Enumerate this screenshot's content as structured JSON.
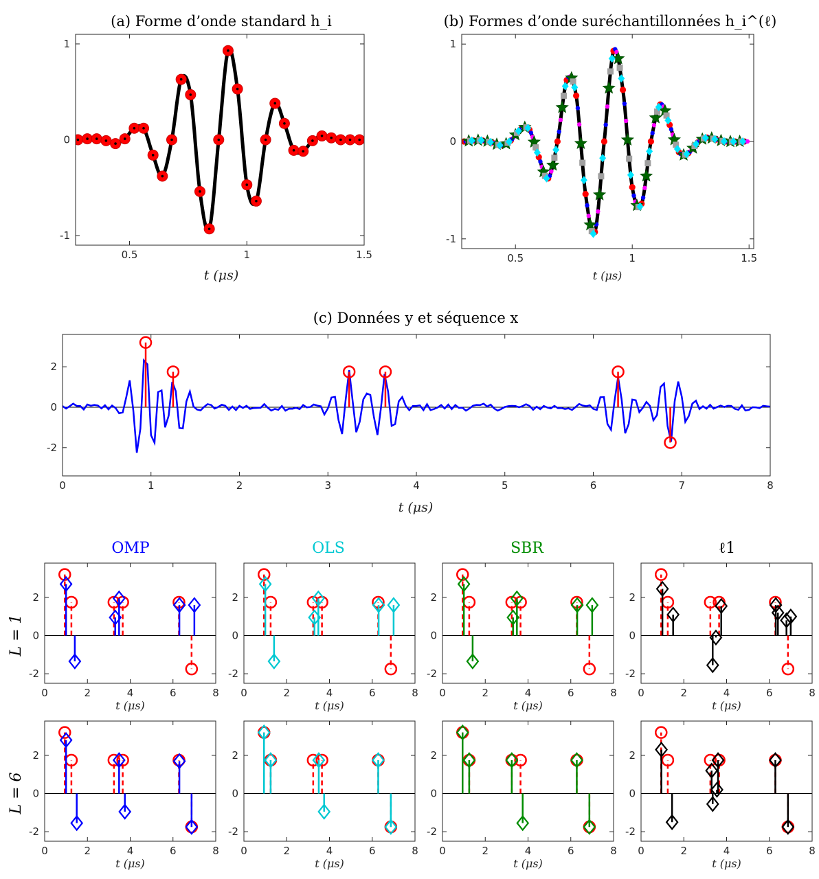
{
  "chart_data": [
    {
      "id": "a",
      "type": "line",
      "title": "(a) Forme d’onde standard h_i",
      "xlabel": "t (μs)",
      "xlim": [
        0.27,
        1.5
      ],
      "ylim": [
        -1.1,
        1.1
      ],
      "xticks": [
        0.5,
        1,
        1.5
      ],
      "xtick_labels": [
        "0.5",
        "1",
        "1.5"
      ],
      "yticks": [
        -1,
        0,
        1
      ],
      "ytick_labels": [
        "-1",
        "0",
        "1"
      ],
      "samples_x": [
        0.28,
        0.32,
        0.36,
        0.4,
        0.44,
        0.48,
        0.52,
        0.56,
        0.6,
        0.64,
        0.68,
        0.72,
        0.76,
        0.8,
        0.84,
        0.88,
        0.92,
        0.96,
        1.0,
        1.04,
        1.08,
        1.12,
        1.16,
        1.2,
        1.24,
        1.28,
        1.32,
        1.36,
        1.4,
        1.44,
        1.48
      ],
      "samples_y": [
        0,
        0.01,
        0.01,
        -0.01,
        -0.04,
        0.01,
        0.12,
        0.12,
        -0.16,
        -0.38,
        0,
        0.63,
        0.47,
        -0.54,
        -0.93,
        0,
        0.93,
        0.53,
        -0.47,
        -0.64,
        0,
        0.38,
        0.17,
        -0.11,
        -0.12,
        -0.01,
        0.04,
        0.02,
        0,
        0,
        0
      ],
      "colors": {
        "curve": "#000000",
        "marker": "#ff0000"
      }
    },
    {
      "id": "b",
      "type": "line",
      "title": "(b) Formes d’onde suréchantillonnées h_i^(ℓ)",
      "xlabel": "t (μs)",
      "xlim": [
        0.27,
        1.52
      ],
      "ylim": [
        -1.1,
        1.1
      ],
      "xticks": [
        0.5,
        1,
        1.5
      ],
      "xtick_labels": [
        "0.5",
        "1",
        "1.5"
      ],
      "yticks": [
        -1,
        0,
        1
      ],
      "ytick_labels": [
        "-1",
        "0",
        "1"
      ],
      "marker_sets": [
        {
          "marker": "circle",
          "color": "#ff0000"
        },
        {
          "marker": "circle-small",
          "color": "#0000ff"
        },
        {
          "marker": "circle-small",
          "color": "#ff00ff"
        },
        {
          "marker": "star",
          "color": "#006400"
        },
        {
          "marker": "square",
          "color": "#a0a0a0"
        },
        {
          "marker": "diamond",
          "color": "#00e5ff"
        }
      ]
    },
    {
      "id": "c",
      "type": "line",
      "title": "(c) Données y et séquence x",
      "xlabel": "t (μs)",
      "xlim": [
        0,
        8
      ],
      "ylim": [
        -3.4,
        3.6
      ],
      "xticks": [
        0,
        1,
        2,
        3,
        4,
        5,
        6,
        7,
        8
      ],
      "xtick_labels": [
        "0",
        "1",
        "2",
        "3",
        "4",
        "5",
        "6",
        "7",
        "8"
      ],
      "yticks": [
        -2,
        0,
        2
      ],
      "ytick_labels": [
        "-2",
        "0",
        "2"
      ],
      "spikes_x": [
        0.94,
        1.25,
        3.24,
        3.65,
        6.28,
        6.87
      ],
      "spikes_y": [
        3.2,
        1.75,
        1.75,
        1.75,
        1.75,
        -1.75
      ],
      "colors": {
        "data": "#0000ff",
        "spikes": "#ff0000"
      }
    }
  ],
  "methods": [
    {
      "name": "OMP",
      "color": "#0000ff"
    },
    {
      "name": "OLS",
      "color": "#00c8d2"
    },
    {
      "name": "SBR",
      "color": "#008c00"
    },
    {
      "name": "ℓ1",
      "color": "#000000"
    }
  ],
  "rows": [
    {
      "label": "L = 1"
    },
    {
      "label": "L = 6"
    }
  ],
  "small_axes": {
    "xlim": [
      0,
      8
    ],
    "ylim": [
      -2.5,
      3.8
    ],
    "xticks": [
      0,
      2,
      4,
      6,
      8
    ],
    "xtick_labels": [
      "0",
      "2",
      "4",
      "6",
      "8"
    ],
    "yticks": [
      -2,
      0,
      2
    ],
    "ytick_labels": [
      "-2",
      "0",
      "2"
    ],
    "xlabel": "t (μs)"
  },
  "estimates": {
    "L1": [
      [
        [
          1.0,
          2.7
        ],
        [
          1.41,
          -1.35
        ],
        [
          3.3,
          0.95
        ],
        [
          3.48,
          1.95
        ],
        [
          6.3,
          1.6
        ],
        [
          7.0,
          1.6
        ]
      ],
      [
        [
          1.0,
          2.7
        ],
        [
          1.41,
          -1.35
        ],
        [
          3.3,
          0.95
        ],
        [
          3.48,
          1.95
        ],
        [
          6.3,
          1.6
        ],
        [
          7.0,
          1.6
        ]
      ],
      [
        [
          1.0,
          2.7
        ],
        [
          1.41,
          -1.35
        ],
        [
          3.3,
          0.95
        ],
        [
          3.48,
          1.95
        ],
        [
          6.3,
          1.6
        ],
        [
          7.0,
          1.6
        ]
      ],
      [
        [
          1.0,
          2.45
        ],
        [
          1.5,
          1.1
        ],
        [
          3.35,
          -1.55
        ],
        [
          3.5,
          -0.1
        ],
        [
          3.75,
          1.55
        ],
        [
          6.3,
          1.6
        ],
        [
          6.4,
          1.2
        ],
        [
          6.8,
          0.8
        ],
        [
          7.0,
          1.0
        ]
      ]
    ],
    "L6": [
      [
        [
          1.0,
          2.8
        ],
        [
          1.5,
          -1.55
        ],
        [
          3.48,
          1.75
        ],
        [
          3.75,
          -0.95
        ],
        [
          6.3,
          1.7
        ],
        [
          6.87,
          -1.75
        ]
      ],
      [
        [
          0.94,
          3.2
        ],
        [
          1.25,
          1.75
        ],
        [
          3.5,
          1.75
        ],
        [
          3.75,
          -0.95
        ],
        [
          6.28,
          1.75
        ],
        [
          6.87,
          -1.75
        ]
      ],
      [
        [
          0.94,
          3.2
        ],
        [
          1.25,
          1.75
        ],
        [
          3.24,
          1.75
        ],
        [
          3.75,
          -1.55
        ],
        [
          6.28,
          1.75
        ],
        [
          6.87,
          -1.75
        ]
      ],
      [
        [
          0.95,
          2.3
        ],
        [
          1.45,
          -1.5
        ],
        [
          3.3,
          1.2
        ],
        [
          3.35,
          -0.55
        ],
        [
          3.55,
          0.2
        ],
        [
          3.6,
          1.75
        ],
        [
          6.28,
          1.75
        ],
        [
          6.87,
          -1.75
        ]
      ]
    ]
  }
}
